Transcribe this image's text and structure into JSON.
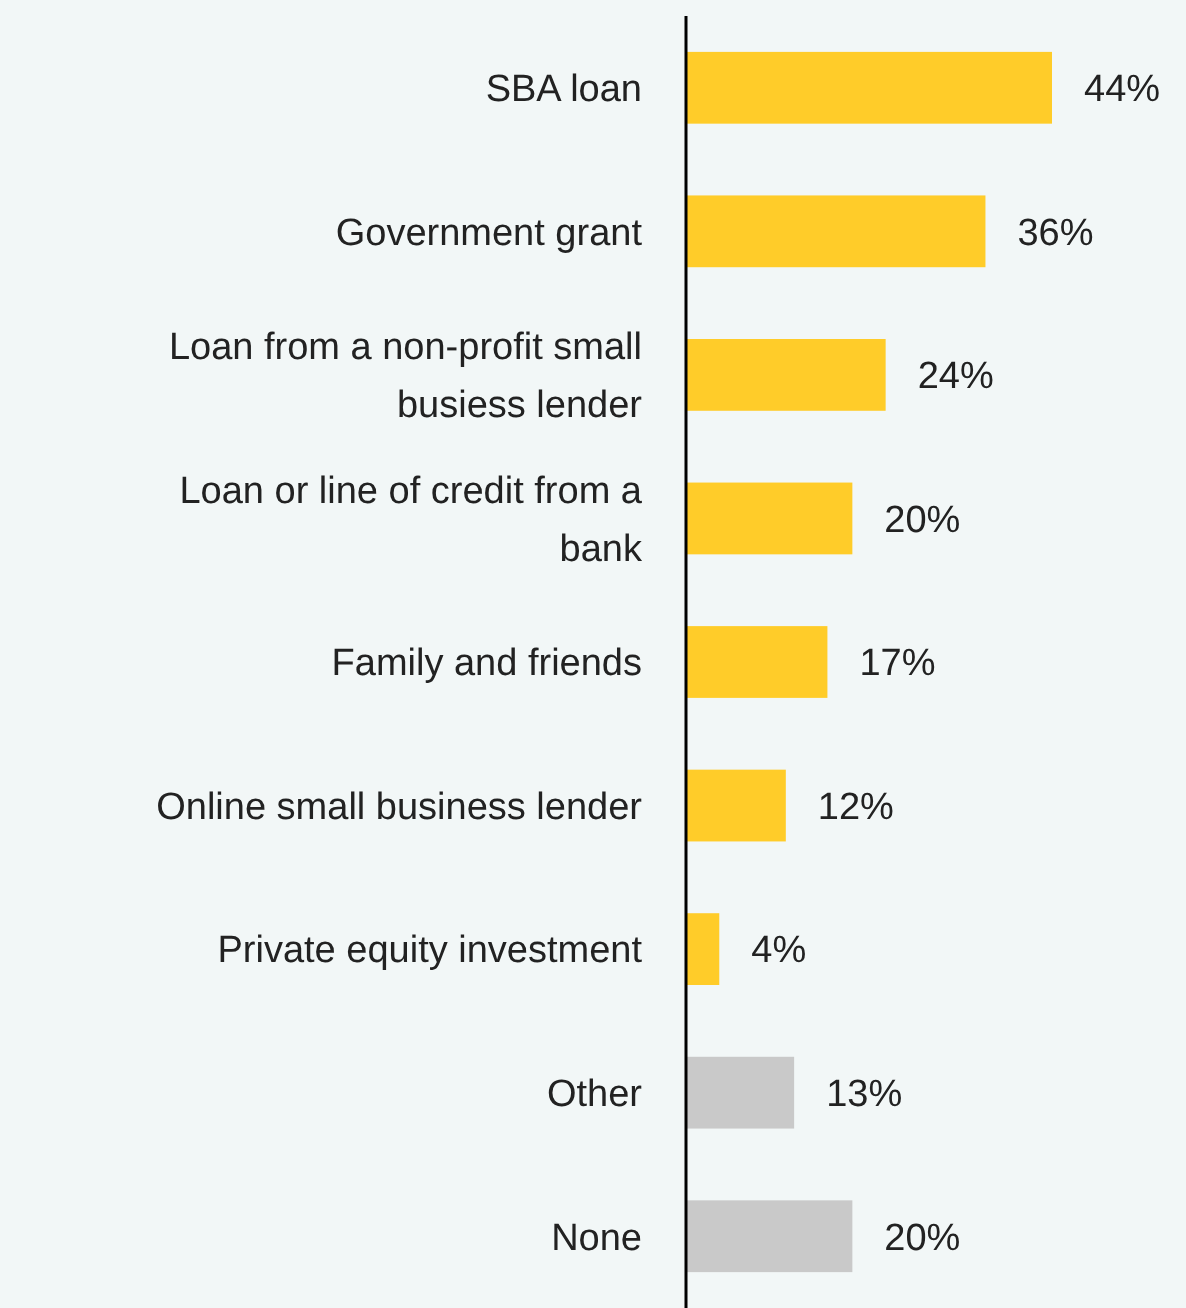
{
  "chart_data": {
    "type": "bar",
    "orientation": "horizontal",
    "data_labels": true,
    "categories": [
      "SBA loan",
      "Government grant",
      "Loan from a non-profit small busiess lender",
      "Loan or line of credit from a bank",
      "Family and friends",
      "Online small business lender",
      "Private equity investment",
      "Other",
      "None"
    ],
    "values": [
      44,
      36,
      24,
      20,
      17,
      12,
      4,
      13,
      20
    ],
    "colors": [
      "#ffcc29",
      "#ffcc29",
      "#ffcc29",
      "#ffcc29",
      "#ffcc29",
      "#ffcc29",
      "#ffcc29",
      "#c9c9c9",
      "#c9c9c9"
    ],
    "value_labels": [
      "44%",
      "36%",
      "24%",
      "20%",
      "17%",
      "12%",
      "4%",
      "13%",
      "20%"
    ]
  }
}
